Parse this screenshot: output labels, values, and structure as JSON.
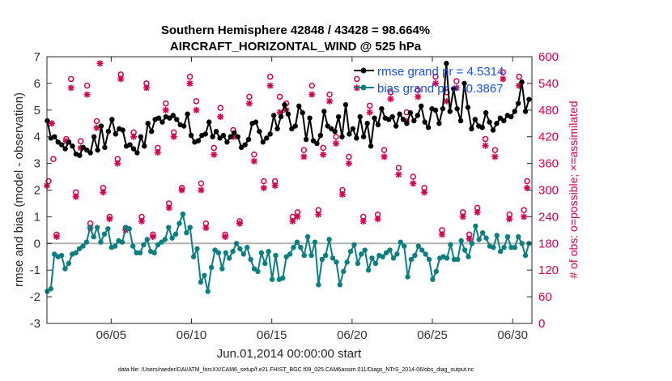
{
  "chart_data": {
    "type": "line",
    "title_line1": "Southern Hemisphere 42848 / 43428 = 98.664%",
    "title_line2": "AIRCRAFT_HORIZONTAL_WIND @ 525 hPa",
    "xlabel": "Jun.01,2014 00:00:00 start",
    "ylabel": "rmse and bias (model - observation)",
    "ylabel_right": "# of obs: o=possible; ×=assimilated",
    "footnote": "data file: /Users/raeder/DAI/ATM_forcXX/CAM6_setup/f.e21.FHIST_BGC.f09_025.CAM6assim.011/Diags_NTrS_2014-06/obs_diag_output.nc",
    "xlim": [
      1,
      31.2
    ],
    "ylim": [
      -3,
      7
    ],
    "ylim_right": [
      0,
      600
    ],
    "x_ticks": [
      5,
      10,
      15,
      20,
      25,
      30
    ],
    "x_tick_labels": [
      "06/05",
      "06/10",
      "06/15",
      "06/20",
      "06/25",
      "06/30"
    ],
    "y_ticks": [
      -3,
      -2,
      -1,
      0,
      1,
      2,
      3,
      4,
      5,
      6,
      7
    ],
    "y_tick_labels": [
      "-3",
      "-2",
      "-1",
      "0",
      "1",
      "2",
      "3",
      "4",
      "5",
      "6",
      "7"
    ],
    "y_right_ticks": [
      0,
      60,
      120,
      180,
      240,
      300,
      360,
      420,
      480,
      540,
      600
    ],
    "y_right_tick_labels": [
      "0",
      "60",
      "120",
      "180",
      "240",
      "300",
      "360",
      "420",
      "480",
      "540",
      "600"
    ],
    "grid": false,
    "legend_position": "top-right",
    "colors": {
      "rmse": "#000000",
      "bias": "#0b7f7f",
      "obs": "#d4004f",
      "zero_line": "#b3b3b3",
      "legend_text": "#1a4fe6"
    },
    "series": [
      {
        "name": "rmse grand pr = 4.5314",
        "axis": "left",
        "values": [
          4.6,
          3.95,
          4.0,
          3.8,
          3.7,
          3.55,
          3.8,
          3.65,
          3.35,
          3.3,
          3.6,
          3.5,
          3.4,
          4.0,
          3.5,
          4.4,
          3.6,
          4.2,
          4.65,
          4.1,
          4.3,
          4.25,
          3.65,
          3.7,
          3.55,
          3.4,
          4.0,
          3.65,
          4.5,
          4.2,
          4.65,
          4.7,
          4.55,
          4.75,
          4.7,
          4.8,
          4.65,
          4.45,
          4.4,
          4.85,
          4.05,
          3.8,
          3.85,
          4.05,
          4.1,
          4.55,
          4.0,
          4.2,
          3.95,
          4.05,
          3.8,
          4.0,
          4.15,
          4.0,
          3.6,
          3.7,
          3.9,
          4.5,
          4.55,
          4.2,
          3.8,
          3.95,
          4.1,
          4.8,
          4.3,
          4.75,
          5.2,
          4.85,
          4.3,
          4.4,
          5.15,
          4.9,
          3.9,
          4.7,
          3.85,
          3.75,
          4.05,
          4.95,
          4.4,
          4.3,
          4.2,
          4.75,
          4.0,
          5.2,
          4.1,
          4.3,
          3.95,
          4.75,
          4.0,
          4.5,
          3.65,
          4.7,
          4.45,
          5.05,
          4.7,
          4.65,
          4.75,
          4.4,
          4.85,
          4.65,
          4.5,
          4.9,
          4.6,
          4.8,
          5.15,
          4.55,
          4.35,
          5.05,
          5.0,
          4.5,
          5.05,
          6.75,
          4.95,
          5.8,
          5.05,
          4.6,
          6.0,
          5.1,
          4.3,
          4.65,
          4.4,
          4.35,
          4.9,
          4.55,
          4.25,
          4.5,
          4.7,
          4.6,
          4.8,
          4.75,
          4.95,
          5.25,
          6.05,
          4.95,
          5.4
        ]
      },
      {
        "name": "bias grand pr = -0.3867",
        "axis": "left",
        "values": [
          -1.8,
          -1.7,
          -0.4,
          -0.5,
          -0.45,
          -0.95,
          -0.75,
          -0.4,
          -0.35,
          -0.2,
          -0.1,
          0.05,
          0.6,
          0.25,
          0.6,
          0.05,
          0.35,
          0.55,
          -0.15,
          -0.1,
          0.1,
          0.05,
          0.6,
          0.55,
          -0.1,
          -0.35,
          -0.35,
          -0.05,
          0.15,
          -0.3,
          -0.35,
          -0.05,
          0.05,
          0.15,
          0.6,
          0.2,
          0.35,
          0.75,
          1.1,
          0.4,
          0.6,
          -0.5,
          -0.2,
          -1.45,
          -1.2,
          -1.8,
          -0.9,
          -0.25,
          -0.35,
          -0.95,
          -0.35,
          -0.55,
          -0.3,
          0.0,
          -0.2,
          -0.4,
          -0.15,
          -0.6,
          -0.95,
          -1.05,
          -0.35,
          -0.75,
          -0.3,
          -1.35,
          -0.45,
          -1.35,
          -1.3,
          -0.5,
          -0.4,
          -0.15,
          0.05,
          -0.15,
          -0.45,
          0.25,
          -0.45,
          0.05,
          -1.55,
          -0.6,
          -0.45,
          0.15,
          -0.55,
          -0.7,
          -1.55,
          -1.05,
          -0.7,
          -0.3,
          -0.05,
          -0.75,
          -0.4,
          -0.25,
          -1.0,
          -0.55,
          -0.75,
          -0.45,
          -0.5,
          -0.35,
          -0.25,
          -0.55,
          -0.4,
          0.05,
          -0.1,
          -1.25,
          -0.6,
          -0.45,
          -0.1,
          -0.25,
          -0.4,
          -0.6,
          -1.35,
          -1.05,
          -0.55,
          -0.5,
          -0.55,
          -0.05,
          -0.6,
          -0.6,
          0.1,
          -0.25,
          -0.5,
          0.0,
          0.65,
          0.15,
          0.4,
          0.2,
          -0.1,
          -0.15,
          0.3,
          -0.3,
          -0.15,
          0.25,
          -0.15,
          -0.15,
          0.25,
          0.0,
          -0.45,
          0.0
        ]
      },
      {
        "name": "# of obs possible",
        "axis": "right",
        "marker": "o",
        "points": [
          [
            1.1,
            320
          ],
          [
            1.4,
            370
          ],
          [
            1.6,
            200
          ],
          [
            2.2,
            415
          ],
          [
            2.5,
            550
          ],
          [
            2.8,
            295
          ],
          [
            3.1,
            410
          ],
          [
            3.5,
            535
          ],
          [
            3.7,
            225
          ],
          [
            4.1,
            455
          ],
          [
            4.5,
            305
          ],
          [
            4.9,
            240
          ],
          [
            5.4,
            370
          ],
          [
            5.6,
            560
          ],
          [
            5.9,
            215
          ],
          [
            6.4,
            430
          ],
          [
            6.9,
            240
          ],
          [
            7.2,
            540
          ],
          [
            7.6,
            200
          ],
          [
            7.9,
            395
          ],
          [
            8.4,
            495
          ],
          [
            8.6,
            270
          ],
          [
            8.9,
            430
          ],
          [
            9.4,
            305
          ],
          [
            9.9,
            555
          ],
          [
            10.3,
            500
          ],
          [
            10.6,
            315
          ],
          [
            10.9,
            225
          ],
          [
            11.4,
            395
          ],
          [
            11.8,
            485
          ],
          [
            12.1,
            200
          ],
          [
            12.6,
            435
          ],
          [
            13.0,
            230
          ],
          [
            13.6,
            510
          ],
          [
            13.9,
            380
          ],
          [
            14.5,
            320
          ],
          [
            14.9,
            555
          ],
          [
            15.2,
            320
          ],
          [
            15.5,
            510
          ],
          [
            15.9,
            495
          ],
          [
            16.3,
            240
          ],
          [
            16.6,
            250
          ],
          [
            17.0,
            390
          ],
          [
            17.5,
            535
          ],
          [
            17.9,
            255
          ],
          [
            18.2,
            395
          ],
          [
            18.6,
            515
          ],
          [
            19.0,
            420
          ],
          [
            19.4,
            300
          ],
          [
            19.8,
            375
          ],
          [
            20.3,
            550
          ],
          [
            20.7,
            240
          ],
          [
            21.1,
            490
          ],
          [
            21.6,
            245
          ],
          [
            22.0,
            390
          ],
          [
            22.4,
            520
          ],
          [
            22.9,
            350
          ],
          [
            23.4,
            475
          ],
          [
            23.8,
            330
          ],
          [
            24.1,
            525
          ],
          [
            24.5,
            305
          ],
          [
            25.2,
            555
          ],
          [
            25.6,
            210
          ],
          [
            25.9,
            520
          ],
          [
            26.5,
            545
          ],
          [
            26.9,
            250
          ],
          [
            27.3,
            200
          ],
          [
            27.8,
            260
          ],
          [
            28.3,
            415
          ],
          [
            28.9,
            390
          ],
          [
            29.4,
            565
          ],
          [
            29.8,
            245
          ],
          [
            30.4,
            555
          ],
          [
            30.7,
            255
          ],
          [
            30.9,
            320
          ]
        ]
      },
      {
        "name": "# of obs assimilated",
        "axis": "right",
        "marker": "*",
        "points": [
          [
            1.0,
            310
          ],
          [
            1.3,
            450
          ],
          [
            1.6,
            195
          ],
          [
            2.2,
            410
          ],
          [
            2.5,
            530
          ],
          [
            2.8,
            285
          ],
          [
            3.1,
            395
          ],
          [
            3.5,
            515
          ],
          [
            3.7,
            215
          ],
          [
            4.1,
            440
          ],
          [
            4.3,
            585
          ],
          [
            4.5,
            295
          ],
          [
            4.9,
            235
          ],
          [
            5.4,
            360
          ],
          [
            5.6,
            550
          ],
          [
            5.9,
            210
          ],
          [
            6.4,
            420
          ],
          [
            6.9,
            230
          ],
          [
            7.2,
            530
          ],
          [
            7.6,
            195
          ],
          [
            7.9,
            385
          ],
          [
            8.4,
            480
          ],
          [
            8.6,
            260
          ],
          [
            8.9,
            420
          ],
          [
            9.4,
            300
          ],
          [
            9.9,
            540
          ],
          [
            10.3,
            480
          ],
          [
            10.6,
            300
          ],
          [
            10.9,
            215
          ],
          [
            11.4,
            380
          ],
          [
            11.8,
            465
          ],
          [
            12.1,
            195
          ],
          [
            12.6,
            420
          ],
          [
            13.0,
            225
          ],
          [
            13.6,
            495
          ],
          [
            13.9,
            365
          ],
          [
            14.5,
            305
          ],
          [
            14.9,
            535
          ],
          [
            15.2,
            310
          ],
          [
            15.5,
            475
          ],
          [
            15.9,
            480
          ],
          [
            16.3,
            230
          ],
          [
            16.6,
            240
          ],
          [
            17.0,
            375
          ],
          [
            17.5,
            515
          ],
          [
            17.9,
            245
          ],
          [
            18.2,
            380
          ],
          [
            18.6,
            500
          ],
          [
            19.0,
            405
          ],
          [
            19.4,
            290
          ],
          [
            19.8,
            360
          ],
          [
            20.3,
            530
          ],
          [
            20.7,
            230
          ],
          [
            21.1,
            475
          ],
          [
            21.6,
            235
          ],
          [
            22.0,
            375
          ],
          [
            22.4,
            505
          ],
          [
            22.9,
            335
          ],
          [
            23.4,
            455
          ],
          [
            23.8,
            315
          ],
          [
            24.1,
            510
          ],
          [
            24.5,
            295
          ],
          [
            25.2,
            540
          ],
          [
            25.6,
            200
          ],
          [
            25.9,
            500
          ],
          [
            26.5,
            530
          ],
          [
            26.9,
            240
          ],
          [
            27.3,
            190
          ],
          [
            27.8,
            250
          ],
          [
            28.3,
            400
          ],
          [
            28.9,
            375
          ],
          [
            29.4,
            550
          ],
          [
            29.8,
            235
          ],
          [
            30.4,
            535
          ],
          [
            30.7,
            240
          ],
          [
            30.9,
            305
          ]
        ]
      }
    ]
  }
}
